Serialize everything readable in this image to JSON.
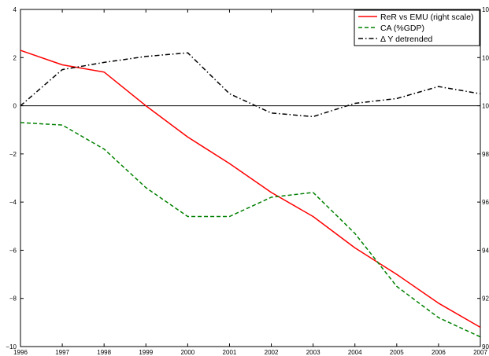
{
  "chart_data": {
    "type": "line",
    "title": "",
    "xlabel": "",
    "ylabel": "",
    "categories": [
      "1996",
      "1997",
      "1998",
      "1999",
      "2000",
      "2001",
      "2002",
      "2003",
      "2004",
      "2005",
      "2006",
      "2007"
    ],
    "x_tick_labels": [
      "1996",
      "1997",
      "1998",
      "1999",
      "2000",
      "2001",
      "2002",
      "2003",
      "2004",
      "2005",
      "2006",
      "2007"
    ],
    "ylim_left": [
      -10,
      4
    ],
    "y_left_tick_labels": [
      "4",
      "2",
      "0",
      "−2",
      "−4",
      "−6",
      "−8",
      "−10"
    ],
    "ylim_right": [
      90,
      104
    ],
    "y_right_tick_labels": [
      "104",
      "102",
      "100",
      "98",
      "96",
      "94",
      "92",
      "90"
    ],
    "zero_line": 0,
    "grid": false,
    "legend": {
      "position": "top-right",
      "entries": [
        "ReR vs EMU (right scale)",
        "CA (%GDP)",
        "Δ Y detrended"
      ]
    },
    "series": [
      {
        "name": "ReR vs EMU (right scale)",
        "axis": "right",
        "color": "#ff0000",
        "dash": "solid",
        "values": [
          102.3,
          101.7,
          101.4,
          100.0,
          98.7,
          97.6,
          96.4,
          95.4,
          94.1,
          93.0,
          91.8,
          90.8
        ]
      },
      {
        "name": "CA (%GDP)",
        "axis": "left",
        "color": "#008000",
        "dash": "dashed",
        "values": [
          -0.7,
          -0.8,
          -1.8,
          -3.4,
          -4.6,
          -4.6,
          -3.8,
          -3.6,
          -5.3,
          -7.5,
          -8.8,
          -9.6
        ]
      },
      {
        "name": "Δ Y detrended",
        "axis": "left",
        "color": "#000000",
        "dash": "dashdot",
        "values": [
          0.0,
          1.5,
          1.8,
          2.05,
          2.2,
          0.5,
          -0.3,
          -0.45,
          0.1,
          0.3,
          0.8,
          0.5
        ]
      }
    ]
  }
}
